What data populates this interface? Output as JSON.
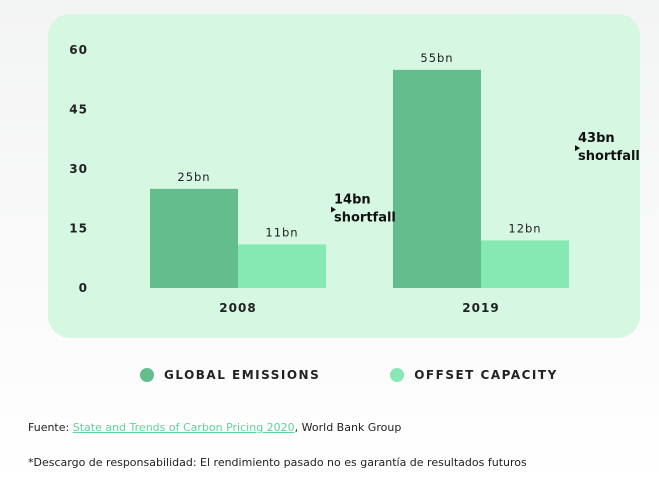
{
  "chart_data": {
    "type": "bar",
    "categories": [
      "2008",
      "2019"
    ],
    "series": [
      {
        "name": "GLOBAL EMISSIONS",
        "values": [
          25,
          55
        ],
        "labels": [
          "25bn",
          "55bn"
        ],
        "color": "#63bd8c"
      },
      {
        "name": "OFFSET CAPACITY",
        "values": [
          11,
          12
        ],
        "labels": [
          "11bn",
          "12bn"
        ],
        "color": "#86e8b3"
      }
    ],
    "ylim": [
      0,
      60
    ],
    "yticks": [
      "0",
      "15",
      "30",
      "45",
      "60"
    ],
    "ytick_values": [
      0,
      15,
      30,
      45,
      60
    ],
    "annotations": [
      {
        "category": "2008",
        "line1": "14bn",
        "line2": "shortfall"
      },
      {
        "category": "2019",
        "line1": "43bn",
        "line2": "shortfall"
      }
    ],
    "grid": false,
    "legend_position": "bottom"
  },
  "legend": {
    "items": [
      {
        "label": "GLOBAL EMISSIONS",
        "color": "#63bd8c"
      },
      {
        "label": "OFFSET CAPACITY",
        "color": "#86e8b3"
      }
    ]
  },
  "footer": {
    "source_prefix": "Fuente: ",
    "source_link": "State and Trends of Carbon Pricing 2020",
    "source_suffix": ", World Bank Group",
    "disclaimer": "*Descargo de responsabilidad: El rendimiento pasado no es garantía de resultados futuros"
  }
}
